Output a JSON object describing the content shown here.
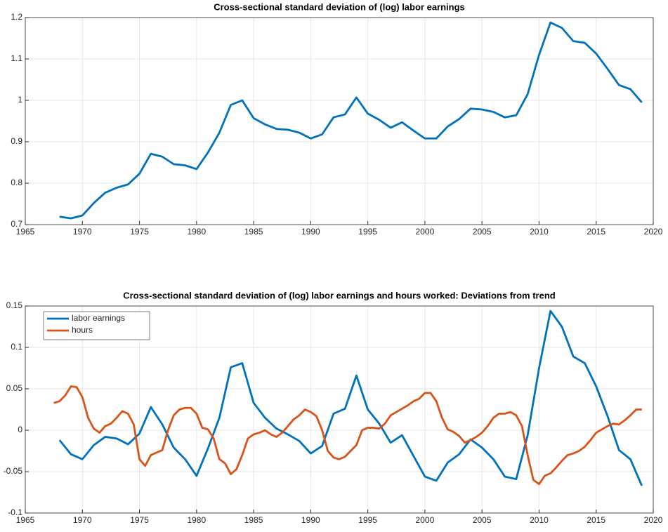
{
  "chart_data": [
    {
      "type": "line",
      "title": "Cross-sectional standard deviation of (log) labor earnings",
      "x": [
        1968,
        1969,
        1970,
        1971,
        1972,
        1973,
        1974,
        1975,
        1976,
        1977,
        1978,
        1979,
        1980,
        1981,
        1982,
        1983,
        1984,
        1985,
        1986,
        1987,
        1988,
        1989,
        1990,
        1991,
        1992,
        1993,
        1994,
        1995,
        1996,
        1997,
        1998,
        1999,
        2000,
        2001,
        2002,
        2003,
        2004,
        2005,
        2006,
        2007,
        2008,
        2009,
        2010,
        2011,
        2012,
        2013,
        2014,
        2015,
        2016,
        2017,
        2018,
        2019
      ],
      "values": [
        0.719,
        0.715,
        0.722,
        0.752,
        0.777,
        0.789,
        0.797,
        0.823,
        0.871,
        0.864,
        0.846,
        0.843,
        0.834,
        0.874,
        0.922,
        0.989,
        1.0,
        0.957,
        0.942,
        0.931,
        0.929,
        0.922,
        0.908,
        0.918,
        0.959,
        0.966,
        1.007,
        0.968,
        0.953,
        0.934,
        0.947,
        0.927,
        0.908,
        0.908,
        0.937,
        0.955,
        0.98,
        0.978,
        0.972,
        0.959,
        0.964,
        1.015,
        1.11,
        1.188,
        1.175,
        1.143,
        1.139,
        1.113,
        1.076,
        1.037,
        1.027,
        0.995
      ],
      "color": "#0072BD",
      "xlim": [
        1965,
        2020
      ],
      "xticks": [
        1965,
        1970,
        1975,
        1980,
        1985,
        1990,
        1995,
        2000,
        2005,
        2010,
        2015,
        2020
      ],
      "ylim": [
        0.7,
        1.2
      ],
      "yticks": [
        0.7,
        0.8,
        0.9,
        1,
        1.1,
        1.2
      ],
      "grid": true
    },
    {
      "type": "line",
      "title": "Cross-sectional standard deviation of (log) labor earnings and hours worked: Deviations from trend",
      "series": [
        {
          "name": "labor earnings",
          "color": "#0072BD",
          "x": [
            1968,
            1969,
            1970,
            1971,
            1972,
            1973,
            1974,
            1975,
            1976,
            1977,
            1978,
            1979,
            1980,
            1981,
            1982,
            1983,
            1984,
            1985,
            1986,
            1987,
            1988,
            1989,
            1990,
            1991,
            1992,
            1993,
            1994,
            1995,
            1996,
            1997,
            1998,
            1999,
            2000,
            2001,
            2002,
            2003,
            2004,
            2005,
            2006,
            2007,
            2008,
            2009,
            2010,
            2011,
            2012,
            2013,
            2014,
            2015,
            2016,
            2017,
            2018,
            2019
          ],
          "values": [
            -0.012,
            -0.029,
            -0.035,
            -0.018,
            -0.008,
            -0.01,
            -0.017,
            -0.004,
            0.028,
            0.007,
            -0.021,
            -0.035,
            -0.055,
            -0.022,
            0.015,
            0.076,
            0.081,
            0.033,
            0.015,
            0.002,
            -0.005,
            -0.013,
            -0.028,
            -0.019,
            0.02,
            0.026,
            0.066,
            0.025,
            0.008,
            -0.015,
            -0.006,
            -0.031,
            -0.056,
            -0.061,
            -0.039,
            -0.029,
            -0.011,
            -0.021,
            -0.035,
            -0.056,
            -0.059,
            -0.006,
            0.075,
            0.144,
            0.125,
            0.089,
            0.081,
            0.053,
            0.017,
            -0.024,
            -0.035,
            -0.067
          ]
        },
        {
          "name": "hours",
          "color": "#D95319",
          "x": [
            1967.5,
            1968,
            1968.5,
            1969,
            1969.5,
            1970,
            1970.5,
            1971,
            1971.5,
            1972,
            1972.5,
            1973,
            1973.5,
            1974,
            1974.5,
            1975,
            1975.5,
            1976,
            1976.5,
            1977,
            1977.5,
            1978,
            1978.5,
            1979,
            1979.5,
            1980,
            1980.5,
            1981,
            1981.5,
            1982,
            1982.5,
            1983,
            1983.5,
            1984,
            1984.5,
            1985,
            1985.5,
            1986,
            1986.5,
            1987,
            1987.5,
            1988,
            1988.5,
            1989,
            1989.5,
            1990,
            1990.5,
            1991,
            1991.5,
            1992,
            1992.5,
            1993,
            1993.5,
            1994,
            1994.5,
            1995,
            1995.5,
            1996,
            1996.5,
            1997,
            1997.5,
            1998,
            1998.5,
            1999,
            1999.5,
            2000,
            2000.5,
            2001,
            2001.5,
            2002,
            2002.5,
            2003,
            2003.5,
            2004,
            2004.5,
            2005,
            2005.5,
            2006,
            2006.5,
            2007,
            2007.5,
            2008,
            2008.5,
            2009,
            2009.5,
            2010,
            2010.5,
            2011,
            2011.5,
            2012,
            2012.5,
            2013,
            2013.5,
            2014,
            2014.5,
            2015,
            2015.5,
            2016,
            2016.5,
            2017,
            2017.5,
            2018,
            2018.5,
            2019
          ],
          "values": [
            0.033,
            0.035,
            0.042,
            0.053,
            0.052,
            0.04,
            0.015,
            0.002,
            -0.003,
            0.005,
            0.008,
            0.015,
            0.023,
            0.02,
            0.007,
            -0.035,
            -0.043,
            -0.03,
            -0.027,
            -0.024,
            0.0,
            0.018,
            0.025,
            0.027,
            0.027,
            0.02,
            0.003,
            0.001,
            -0.01,
            -0.035,
            -0.04,
            -0.053,
            -0.047,
            -0.03,
            -0.01,
            -0.005,
            -0.003,
            0.0,
            -0.005,
            -0.008,
            -0.003,
            0.005,
            0.013,
            0.018,
            0.025,
            0.022,
            0.017,
            0.0,
            -0.025,
            -0.033,
            -0.035,
            -0.032,
            -0.025,
            -0.018,
            0.0,
            0.003,
            0.003,
            0.002,
            0.008,
            0.018,
            0.022,
            0.026,
            0.03,
            0.035,
            0.038,
            0.045,
            0.045,
            0.035,
            0.015,
            0.001,
            -0.002,
            -0.007,
            -0.015,
            -0.012,
            -0.008,
            -0.003,
            0.005,
            0.015,
            0.02,
            0.02,
            0.022,
            0.018,
            0.005,
            -0.03,
            -0.06,
            -0.065,
            -0.055,
            -0.052,
            -0.045,
            -0.037,
            -0.03,
            -0.028,
            -0.025,
            -0.02,
            -0.012,
            -0.003,
            0.001,
            0.005,
            0.008,
            0.007,
            0.012,
            0.018,
            0.025,
            0.025
          ]
        }
      ],
      "xlim": [
        1965,
        2020
      ],
      "xticks": [
        1965,
        1970,
        1975,
        1980,
        1985,
        1990,
        1995,
        2000,
        2005,
        2010,
        2015,
        2020
      ],
      "ylim": [
        -0.1,
        0.15
      ],
      "yticks": [
        -0.1,
        -0.05,
        0,
        0.05,
        0.1,
        0.15
      ],
      "grid": true,
      "legend": "northwest"
    }
  ]
}
